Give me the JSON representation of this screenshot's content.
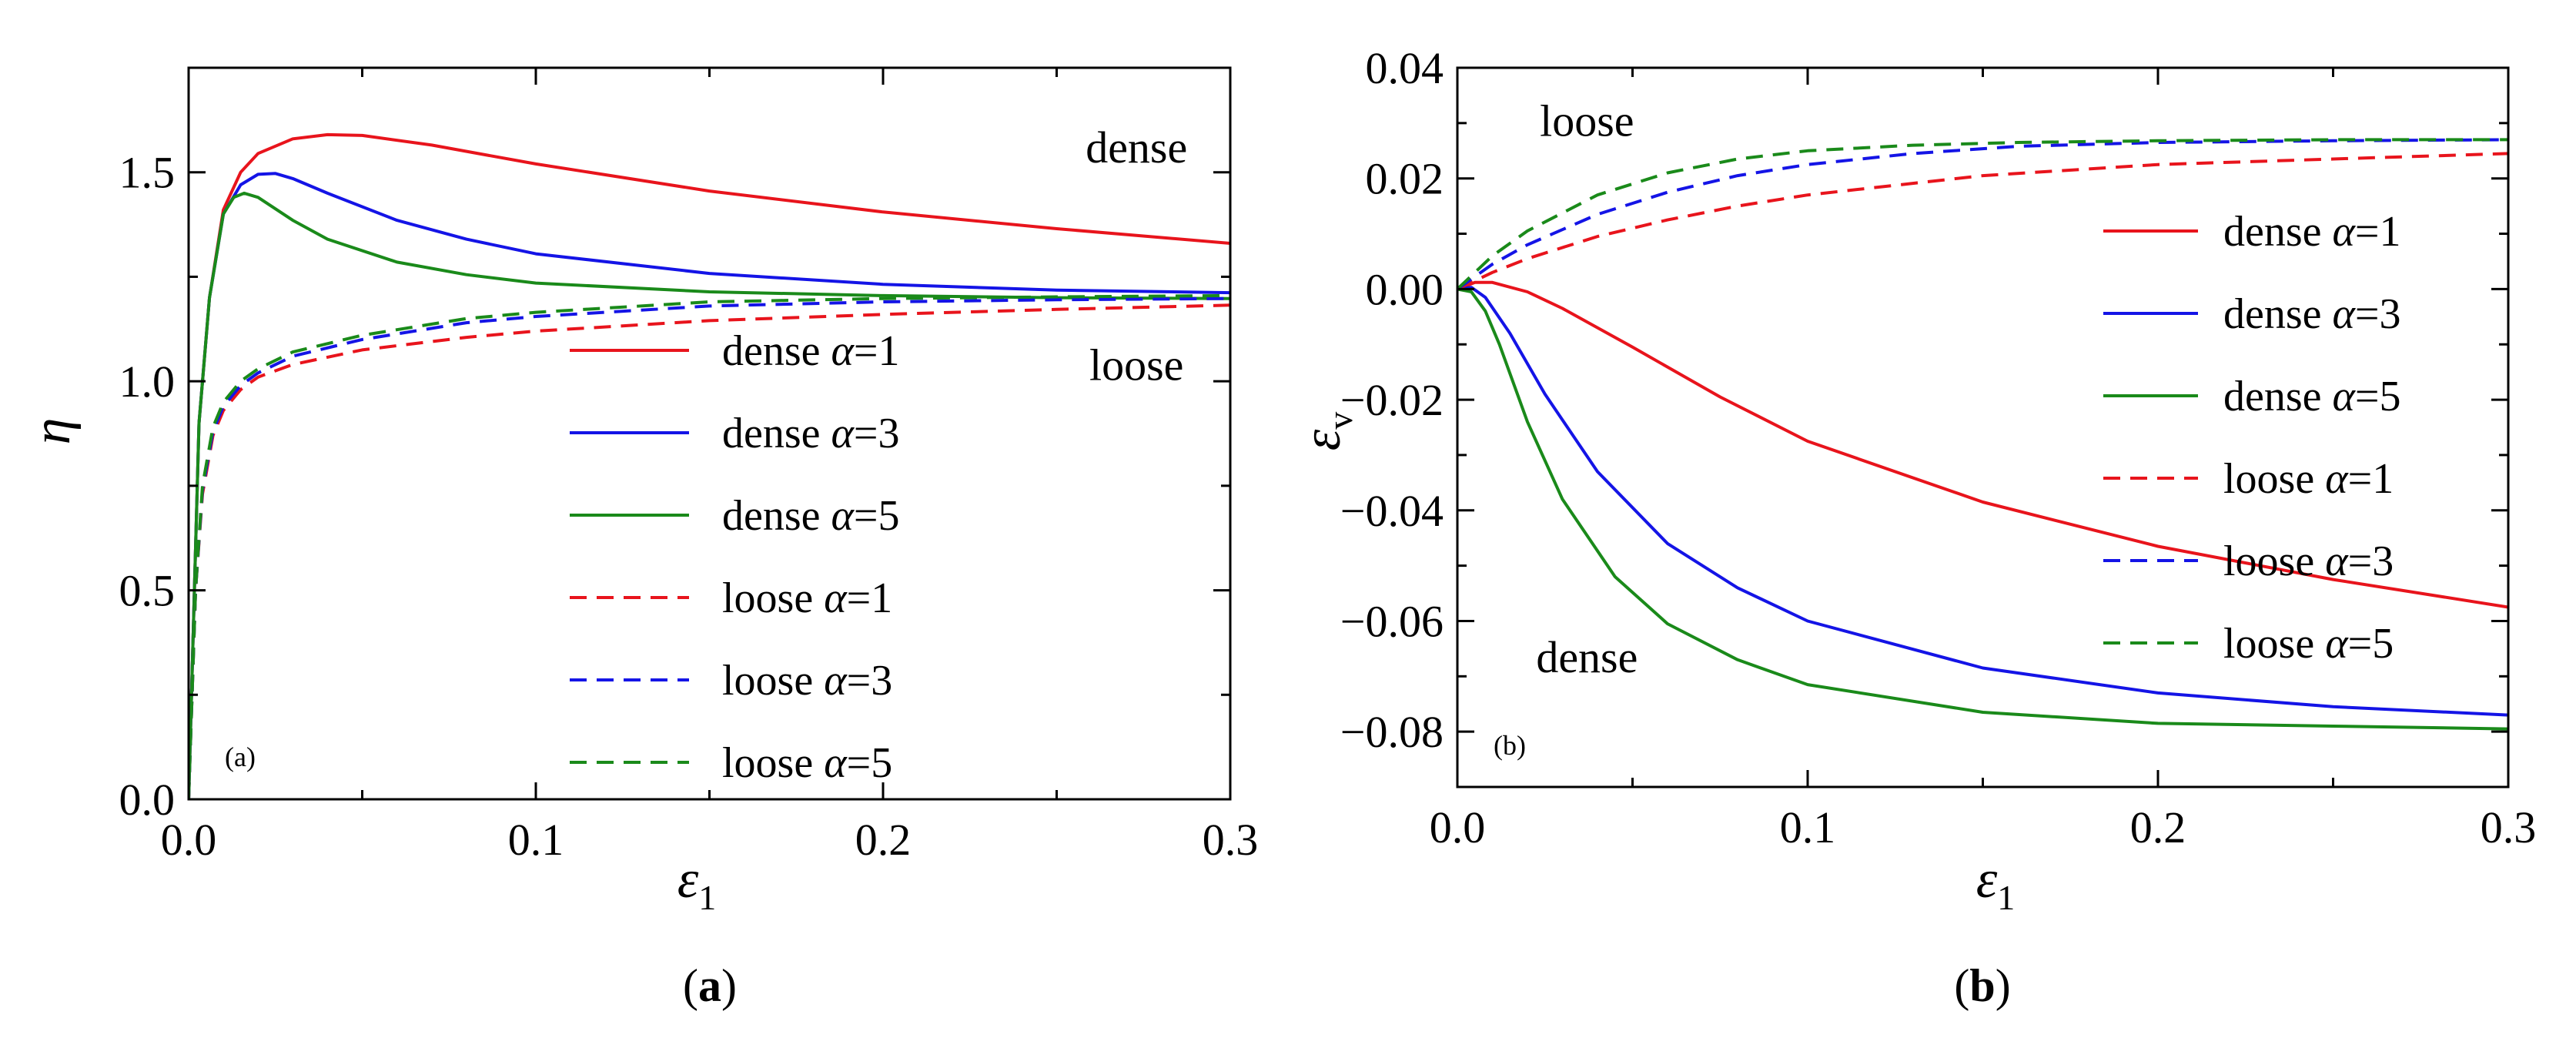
{
  "chart_data": [
    {
      "type": "line",
      "panel": "a",
      "panel_label": "(a)",
      "caption": {
        "open": "(",
        "letter": "a",
        "close": ")"
      },
      "ylabel": "η",
      "xlabel": {
        "base": "ε",
        "sub": "1"
      },
      "xlim": [
        0,
        0.3
      ],
      "ylim": [
        0,
        1.75
      ],
      "xticks": [
        0,
        0.1,
        0.2,
        0.3
      ],
      "xtick_labels": [
        "0.0",
        "0.1",
        "0.2",
        "0.3"
      ],
      "yticks": [
        0,
        0.5,
        1.0,
        1.5
      ],
      "ytick_labels": [
        "0.0",
        "0.5",
        "1.0",
        "1.5"
      ],
      "annotations": [
        {
          "text": "dense",
          "x": 0.273,
          "y": 1.56
        },
        {
          "text": "loose",
          "x": 0.273,
          "y": 1.04
        }
      ],
      "legend_position": "center-right",
      "series": [
        {
          "name": "dense α=1",
          "label": "dense ",
          "alpha": "α",
          "alpha_value": "=1",
          "color": "#e8141c",
          "dash": "solid",
          "points": [
            [
              0,
              0
            ],
            [
              0.003,
              0.9
            ],
            [
              0.006,
              1.2
            ],
            [
              0.01,
              1.41
            ],
            [
              0.015,
              1.5
            ],
            [
              0.02,
              1.545
            ],
            [
              0.03,
              1.58
            ],
            [
              0.04,
              1.59
            ],
            [
              0.05,
              1.588
            ],
            [
              0.07,
              1.565
            ],
            [
              0.1,
              1.52
            ],
            [
              0.15,
              1.455
            ],
            [
              0.2,
              1.405
            ],
            [
              0.25,
              1.365
            ],
            [
              0.3,
              1.33
            ]
          ]
        },
        {
          "name": "dense α=3",
          "label": "dense ",
          "alpha": "α",
          "alpha_value": "=3",
          "color": "#1414e6",
          "dash": "solid",
          "points": [
            [
              0,
              0
            ],
            [
              0.003,
              0.9
            ],
            [
              0.006,
              1.2
            ],
            [
              0.01,
              1.4
            ],
            [
              0.015,
              1.47
            ],
            [
              0.02,
              1.495
            ],
            [
              0.025,
              1.497
            ],
            [
              0.03,
              1.485
            ],
            [
              0.04,
              1.45
            ],
            [
              0.06,
              1.385
            ],
            [
              0.08,
              1.34
            ],
            [
              0.1,
              1.305
            ],
            [
              0.15,
              1.258
            ],
            [
              0.2,
              1.232
            ],
            [
              0.25,
              1.218
            ],
            [
              0.3,
              1.212
            ]
          ]
        },
        {
          "name": "dense α=5",
          "label": "dense ",
          "alpha": "α",
          "alpha_value": "=5",
          "color": "#1a8a1a",
          "dash": "solid",
          "points": [
            [
              0,
              0
            ],
            [
              0.003,
              0.9
            ],
            [
              0.006,
              1.2
            ],
            [
              0.01,
              1.4
            ],
            [
              0.013,
              1.44
            ],
            [
              0.016,
              1.45
            ],
            [
              0.02,
              1.44
            ],
            [
              0.03,
              1.385
            ],
            [
              0.04,
              1.34
            ],
            [
              0.06,
              1.285
            ],
            [
              0.08,
              1.255
            ],
            [
              0.1,
              1.235
            ],
            [
              0.15,
              1.214
            ],
            [
              0.2,
              1.205
            ],
            [
              0.25,
              1.2
            ],
            [
              0.3,
              1.198
            ]
          ]
        },
        {
          "name": "loose α=1",
          "label": "loose ",
          "alpha": "α",
          "alpha_value": "=1",
          "color": "#e8141c",
          "dash": "dashed",
          "points": [
            [
              0,
              0
            ],
            [
              0.002,
              0.5
            ],
            [
              0.004,
              0.73
            ],
            [
              0.007,
              0.87
            ],
            [
              0.01,
              0.93
            ],
            [
              0.015,
              0.98
            ],
            [
              0.02,
              1.01
            ],
            [
              0.03,
              1.04
            ],
            [
              0.05,
              1.075
            ],
            [
              0.08,
              1.105
            ],
            [
              0.1,
              1.12
            ],
            [
              0.15,
              1.145
            ],
            [
              0.2,
              1.16
            ],
            [
              0.25,
              1.172
            ],
            [
              0.3,
              1.182
            ]
          ]
        },
        {
          "name": "loose α=3",
          "label": "loose ",
          "alpha": "α",
          "alpha_value": "=3",
          "color": "#1414e6",
          "dash": "dashed",
          "points": [
            [
              0,
              0
            ],
            [
              0.002,
              0.5
            ],
            [
              0.004,
              0.74
            ],
            [
              0.007,
              0.88
            ],
            [
              0.01,
              0.94
            ],
            [
              0.015,
              0.99
            ],
            [
              0.02,
              1.02
            ],
            [
              0.03,
              1.06
            ],
            [
              0.05,
              1.1
            ],
            [
              0.08,
              1.14
            ],
            [
              0.1,
              1.155
            ],
            [
              0.15,
              1.18
            ],
            [
              0.2,
              1.19
            ],
            [
              0.25,
              1.195
            ],
            [
              0.3,
              1.198
            ]
          ]
        },
        {
          "name": "loose α=5",
          "label": "loose ",
          "alpha": "α",
          "alpha_value": "=5",
          "color": "#1a8a1a",
          "dash": "dashed",
          "points": [
            [
              0,
              0
            ],
            [
              0.002,
              0.5
            ],
            [
              0.004,
              0.75
            ],
            [
              0.007,
              0.89
            ],
            [
              0.01,
              0.95
            ],
            [
              0.015,
              1.0
            ],
            [
              0.02,
              1.03
            ],
            [
              0.03,
              1.07
            ],
            [
              0.05,
              1.11
            ],
            [
              0.08,
              1.15
            ],
            [
              0.1,
              1.165
            ],
            [
              0.15,
              1.19
            ],
            [
              0.2,
              1.198
            ],
            [
              0.25,
              1.202
            ],
            [
              0.3,
              1.205
            ]
          ]
        }
      ]
    },
    {
      "type": "line",
      "panel": "b",
      "panel_label": "(b)",
      "caption": {
        "open": "(",
        "letter": "b",
        "close": ")"
      },
      "ylabel": {
        "base": "ε",
        "sub": "v"
      },
      "xlabel": {
        "base": "ε",
        "sub": "1"
      },
      "xlim": [
        0,
        0.3
      ],
      "ylim": [
        -0.09,
        0.04
      ],
      "xticks": [
        0,
        0.1,
        0.2,
        0.3
      ],
      "xtick_labels": [
        "0.0",
        "0.1",
        "0.2",
        "0.3"
      ],
      "yticks": [
        -0.08,
        -0.06,
        -0.04,
        -0.02,
        0,
        0.02,
        0.04
      ],
      "ytick_labels": [
        "−0.08",
        "−0.06",
        "−0.04",
        "−0.02",
        "0.00",
        "0.02",
        "0.04"
      ],
      "annotations": [
        {
          "text": "loose",
          "x": 0.037,
          "y": 0.0305
        },
        {
          "text": "dense",
          "x": 0.037,
          "y": -0.0665
        }
      ],
      "legend_position": "right",
      "series": [
        {
          "name": "dense α=1",
          "label": "dense ",
          "alpha": "α",
          "alpha_value": "=1",
          "color": "#e8141c",
          "dash": "solid",
          "points": [
            [
              0,
              0
            ],
            [
              0.005,
              0.0012
            ],
            [
              0.01,
              0.0012
            ],
            [
              0.02,
              -0.0005
            ],
            [
              0.03,
              -0.0035
            ],
            [
              0.05,
              -0.0105
            ],
            [
              0.075,
              -0.0195
            ],
            [
              0.1,
              -0.0275
            ],
            [
              0.15,
              -0.0385
            ],
            [
              0.2,
              -0.0465
            ],
            [
              0.25,
              -0.0525
            ],
            [
              0.3,
              -0.0575
            ]
          ]
        },
        {
          "name": "dense α=3",
          "label": "dense ",
          "alpha": "α",
          "alpha_value": "=3",
          "color": "#1414e6",
          "dash": "solid",
          "points": [
            [
              0,
              0
            ],
            [
              0.004,
              0.0003
            ],
            [
              0.008,
              -0.0015
            ],
            [
              0.015,
              -0.008
            ],
            [
              0.025,
              -0.019
            ],
            [
              0.04,
              -0.033
            ],
            [
              0.06,
              -0.046
            ],
            [
              0.08,
              -0.054
            ],
            [
              0.1,
              -0.06
            ],
            [
              0.15,
              -0.0685
            ],
            [
              0.2,
              -0.073
            ],
            [
              0.25,
              -0.0755
            ],
            [
              0.3,
              -0.077
            ]
          ]
        },
        {
          "name": "dense α=5",
          "label": "dense ",
          "alpha": "α",
          "alpha_value": "=5",
          "color": "#1a8a1a",
          "dash": "solid",
          "points": [
            [
              0,
              0
            ],
            [
              0.004,
              -0.0005
            ],
            [
              0.008,
              -0.004
            ],
            [
              0.012,
              -0.01
            ],
            [
              0.02,
              -0.024
            ],
            [
              0.03,
              -0.038
            ],
            [
              0.045,
              -0.052
            ],
            [
              0.06,
              -0.0605
            ],
            [
              0.08,
              -0.067
            ],
            [
              0.1,
              -0.0715
            ],
            [
              0.15,
              -0.0765
            ],
            [
              0.2,
              -0.0785
            ],
            [
              0.25,
              -0.079
            ],
            [
              0.3,
              -0.0795
            ]
          ]
        },
        {
          "name": "loose α=1",
          "label": "loose ",
          "alpha": "α",
          "alpha_value": "=1",
          "color": "#e8141c",
          "dash": "dashed",
          "points": [
            [
              0,
              0
            ],
            [
              0.01,
              0.003
            ],
            [
              0.02,
              0.0055
            ],
            [
              0.04,
              0.0095
            ],
            [
              0.06,
              0.0125
            ],
            [
              0.08,
              0.015
            ],
            [
              0.1,
              0.017
            ],
            [
              0.15,
              0.0205
            ],
            [
              0.2,
              0.0225
            ],
            [
              0.25,
              0.0235
            ],
            [
              0.3,
              0.0245
            ]
          ]
        },
        {
          "name": "loose α=3",
          "label": "loose ",
          "alpha": "α",
          "alpha_value": "=3",
          "color": "#1414e6",
          "dash": "dashed",
          "points": [
            [
              0,
              0
            ],
            [
              0.01,
              0.0045
            ],
            [
              0.02,
              0.008
            ],
            [
              0.04,
              0.0135
            ],
            [
              0.06,
              0.0175
            ],
            [
              0.08,
              0.0205
            ],
            [
              0.1,
              0.0225
            ],
            [
              0.13,
              0.0245
            ],
            [
              0.16,
              0.0258
            ],
            [
              0.2,
              0.0265
            ],
            [
              0.25,
              0.0268
            ],
            [
              0.3,
              0.027
            ]
          ]
        },
        {
          "name": "loose α=5",
          "label": "loose ",
          "alpha": "α",
          "alpha_value": "=5",
          "color": "#1a8a1a",
          "dash": "dashed",
          "points": [
            [
              0,
              0
            ],
            [
              0.01,
              0.006
            ],
            [
              0.02,
              0.0105
            ],
            [
              0.04,
              0.017
            ],
            [
              0.06,
              0.021
            ],
            [
              0.08,
              0.0235
            ],
            [
              0.1,
              0.025
            ],
            [
              0.13,
              0.026
            ],
            [
              0.16,
              0.0265
            ],
            [
              0.2,
              0.0268
            ],
            [
              0.25,
              0.027
            ],
            [
              0.3,
              0.027
            ]
          ]
        }
      ]
    }
  ]
}
